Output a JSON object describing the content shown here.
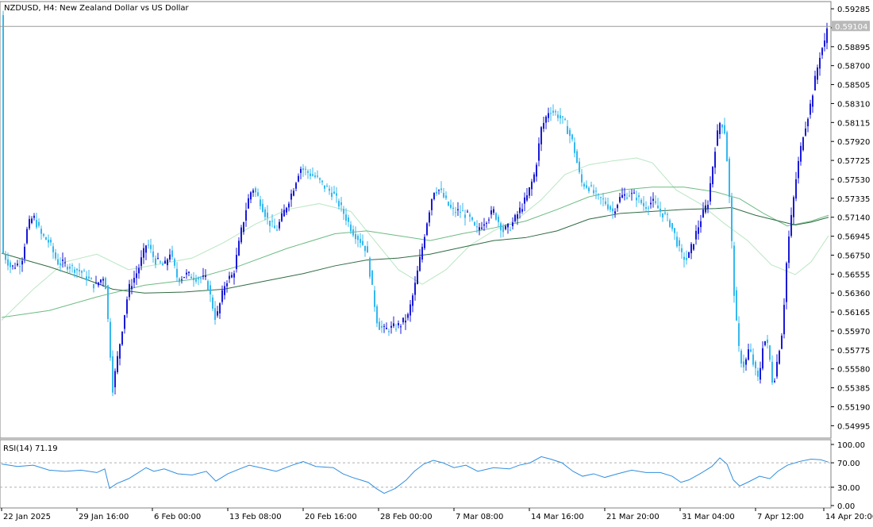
{
  "chart_data": {
    "type": "candlestick",
    "title": "NZDUSD, H4:  New Zealand Dollar vs US Dollar",
    "price_axis": {
      "ticks": [
        "0.59285",
        "0.59090",
        "0.58895",
        "0.58700",
        "0.58505",
        "0.58310",
        "0.58115",
        "0.57920",
        "0.57725",
        "0.57530",
        "0.57335",
        "0.57140",
        "0.56945",
        "0.56750",
        "0.56555",
        "0.56360",
        "0.56165",
        "0.55970",
        "0.55775",
        "0.55580",
        "0.55385",
        "0.55190",
        "0.54995"
      ],
      "range": [
        0.549,
        0.5931
      ],
      "current_price_label": "0.59104",
      "current_price": 0.59104
    },
    "time_axis": {
      "labels": [
        "22 Jan 2025",
        "29 Jan 16:00",
        "6 Feb 00:00",
        "13 Feb 08:00",
        "20 Feb 16:00",
        "28 Feb 00:00",
        "7 Mar 08:00",
        "14 Mar 16:00",
        "21 Mar 20:00",
        "31 Mar 04:00",
        "7 Apr 12:00",
        "14 Apr 20:00"
      ]
    },
    "price_path": [
      [
        0,
        0.568
      ],
      [
        12,
        0.5662
      ],
      [
        25,
        0.5668
      ],
      [
        33,
        0.5705
      ],
      [
        40,
        0.5715
      ],
      [
        50,
        0.5696
      ],
      [
        60,
        0.5688
      ],
      [
        70,
        0.5668
      ],
      [
        85,
        0.5664
      ],
      [
        100,
        0.5658
      ],
      [
        118,
        0.5643
      ],
      [
        130,
        0.5655
      ],
      [
        140,
        0.5538
      ],
      [
        150,
        0.559
      ],
      [
        160,
        0.564
      ],
      [
        172,
        0.566
      ],
      [
        183,
        0.5688
      ],
      [
        193,
        0.567
      ],
      [
        205,
        0.5663
      ],
      [
        212,
        0.5678
      ],
      [
        222,
        0.565
      ],
      [
        232,
        0.5655
      ],
      [
        245,
        0.5652
      ],
      [
        258,
        0.565
      ],
      [
        270,
        0.5608
      ],
      [
        282,
        0.5648
      ],
      [
        292,
        0.5655
      ],
      [
        302,
        0.57
      ],
      [
        310,
        0.573
      ],
      [
        316,
        0.5745
      ],
      [
        326,
        0.573
      ],
      [
        336,
        0.571
      ],
      [
        346,
        0.57
      ],
      [
        356,
        0.572
      ],
      [
        366,
        0.574
      ],
      [
        376,
        0.5765
      ],
      [
        386,
        0.576
      ],
      [
        396,
        0.5755
      ],
      [
        406,
        0.5746
      ],
      [
        418,
        0.5738
      ],
      [
        430,
        0.572
      ],
      [
        442,
        0.57
      ],
      [
        452,
        0.569
      ],
      [
        460,
        0.568
      ],
      [
        467,
        0.564
      ],
      [
        474,
        0.5603
      ],
      [
        482,
        0.5598
      ],
      [
        492,
        0.56
      ],
      [
        502,
        0.5603
      ],
      [
        512,
        0.5612
      ],
      [
        520,
        0.564
      ],
      [
        528,
        0.5675
      ],
      [
        536,
        0.571
      ],
      [
        544,
        0.5742
      ],
      [
        552,
        0.5742
      ],
      [
        560,
        0.573
      ],
      [
        568,
        0.572
      ],
      [
        578,
        0.572
      ],
      [
        588,
        0.5715
      ],
      [
        598,
        0.57
      ],
      [
        608,
        0.571
      ],
      [
        620,
        0.572
      ],
      [
        632,
        0.57
      ],
      [
        642,
        0.5705
      ],
      [
        652,
        0.572
      ],
      [
        662,
        0.5735
      ],
      [
        672,
        0.576
      ],
      [
        680,
        0.5805
      ],
      [
        690,
        0.5825
      ],
      [
        700,
        0.582
      ],
      [
        710,
        0.581
      ],
      [
        720,
        0.579
      ],
      [
        730,
        0.575
      ],
      [
        740,
        0.5745
      ],
      [
        750,
        0.5735
      ],
      [
        760,
        0.573
      ],
      [
        770,
        0.572
      ],
      [
        780,
        0.5735
      ],
      [
        790,
        0.5738
      ],
      [
        800,
        0.5735
      ],
      [
        810,
        0.5725
      ],
      [
        820,
        0.573
      ],
      [
        830,
        0.572
      ],
      [
        840,
        0.5712
      ],
      [
        848,
        0.5696
      ],
      [
        856,
        0.5675
      ],
      [
        864,
        0.567
      ],
      [
        872,
        0.569
      ],
      [
        880,
        0.571
      ],
      [
        890,
        0.573
      ],
      [
        900,
        0.5792
      ],
      [
        906,
        0.5815
      ],
      [
        912,
        0.58
      ],
      [
        918,
        0.572
      ],
      [
        924,
        0.562
      ],
      [
        930,
        0.557
      ],
      [
        936,
        0.556
      ],
      [
        942,
        0.558
      ],
      [
        948,
        0.556
      ],
      [
        954,
        0.5545
      ],
      [
        960,
        0.559
      ],
      [
        966,
        0.558
      ],
      [
        972,
        0.554
      ],
      [
        978,
        0.557
      ],
      [
        984,
        0.56
      ],
      [
        990,
        0.568
      ],
      [
        996,
        0.572
      ],
      [
        1002,
        0.576
      ],
      [
        1010,
        0.58
      ],
      [
        1018,
        0.5825
      ],
      [
        1026,
        0.586
      ],
      [
        1032,
        0.5885
      ],
      [
        1038,
        0.5895
      ],
      [
        1042,
        0.5922
      ]
    ],
    "moving_averages": [
      {
        "color": "#b9e6c2",
        "path": [
          [
            0,
            0.5608
          ],
          [
            40,
            0.564
          ],
          [
            80,
            0.5668
          ],
          [
            120,
            0.5676
          ],
          [
            160,
            0.566
          ],
          [
            200,
            0.5666
          ],
          [
            240,
            0.5672
          ],
          [
            280,
            0.5688
          ],
          [
            320,
            0.5707
          ],
          [
            360,
            0.5722
          ],
          [
            400,
            0.5728
          ],
          [
            440,
            0.572
          ],
          [
            470,
            0.569
          ],
          [
            500,
            0.566
          ],
          [
            530,
            0.5645
          ],
          [
            560,
            0.566
          ],
          [
            590,
            0.5685
          ],
          [
            620,
            0.57
          ],
          [
            650,
            0.5712
          ],
          [
            680,
            0.5732
          ],
          [
            710,
            0.5758
          ],
          [
            740,
            0.5768
          ],
          [
            770,
            0.5772
          ],
          [
            800,
            0.5775
          ],
          [
            820,
            0.577
          ],
          [
            850,
            0.5742
          ],
          [
            880,
            0.5728
          ],
          [
            910,
            0.5708
          ],
          [
            940,
            0.569
          ],
          [
            970,
            0.5665
          ],
          [
            1000,
            0.5655
          ],
          [
            1020,
            0.5668
          ],
          [
            1042,
            0.5695
          ]
        ]
      },
      {
        "color": "#6cbb83",
        "path": [
          [
            0,
            0.5611
          ],
          [
            60,
            0.5618
          ],
          [
            120,
            0.5632
          ],
          [
            180,
            0.5644
          ],
          [
            240,
            0.565
          ],
          [
            300,
            0.5664
          ],
          [
            360,
            0.5682
          ],
          [
            420,
            0.5697
          ],
          [
            460,
            0.57
          ],
          [
            500,
            0.5695
          ],
          [
            540,
            0.569
          ],
          [
            580,
            0.5697
          ],
          [
            620,
            0.5703
          ],
          [
            660,
            0.571
          ],
          [
            700,
            0.5722
          ],
          [
            740,
            0.5735
          ],
          [
            780,
            0.5742
          ],
          [
            820,
            0.5745
          ],
          [
            860,
            0.5745
          ],
          [
            900,
            0.574
          ],
          [
            930,
            0.5733
          ],
          [
            960,
            0.5718
          ],
          [
            990,
            0.5705
          ],
          [
            1020,
            0.571
          ],
          [
            1042,
            0.5716
          ]
        ]
      },
      {
        "color": "#2f6b43",
        "path": [
          [
            0,
            0.5677
          ],
          [
            30,
            0.567
          ],
          [
            60,
            0.5663
          ],
          [
            100,
            0.5652
          ],
          [
            140,
            0.564
          ],
          [
            180,
            0.5636
          ],
          [
            230,
            0.5637
          ],
          [
            280,
            0.564
          ],
          [
            330,
            0.5648
          ],
          [
            380,
            0.5656
          ],
          [
            420,
            0.5664
          ],
          [
            460,
            0.567
          ],
          [
            500,
            0.5672
          ],
          [
            540,
            0.5676
          ],
          [
            580,
            0.5683
          ],
          [
            620,
            0.569
          ],
          [
            660,
            0.5693
          ],
          [
            700,
            0.57
          ],
          [
            740,
            0.5712
          ],
          [
            780,
            0.5718
          ],
          [
            820,
            0.572
          ],
          [
            860,
            0.5722
          ],
          [
            900,
            0.5723
          ],
          [
            920,
            0.5724
          ],
          [
            950,
            0.5716
          ],
          [
            980,
            0.571
          ],
          [
            1000,
            0.5706
          ],
          [
            1020,
            0.5709
          ],
          [
            1042,
            0.5714
          ]
        ]
      }
    ],
    "rsi": {
      "label": "RSI(14) 71.19",
      "levels": [
        "100.00",
        "70.00",
        "30.00",
        "0.00"
      ],
      "path": [
        [
          0,
          68
        ],
        [
          20,
          64
        ],
        [
          40,
          66
        ],
        [
          60,
          58
        ],
        [
          80,
          56
        ],
        [
          100,
          58
        ],
        [
          120,
          54
        ],
        [
          130,
          60
        ],
        [
          136,
          28
        ],
        [
          145,
          36
        ],
        [
          160,
          44
        ],
        [
          170,
          52
        ],
        [
          182,
          62
        ],
        [
          192,
          56
        ],
        [
          205,
          60
        ],
        [
          222,
          52
        ],
        [
          240,
          50
        ],
        [
          258,
          56
        ],
        [
          270,
          40
        ],
        [
          285,
          52
        ],
        [
          300,
          60
        ],
        [
          312,
          66
        ],
        [
          326,
          62
        ],
        [
          346,
          56
        ],
        [
          366,
          66
        ],
        [
          380,
          72
        ],
        [
          396,
          64
        ],
        [
          418,
          62
        ],
        [
          430,
          52
        ],
        [
          442,
          46
        ],
        [
          452,
          42
        ],
        [
          462,
          38
        ],
        [
          472,
          28
        ],
        [
          482,
          20
        ],
        [
          496,
          28
        ],
        [
          510,
          42
        ],
        [
          520,
          56
        ],
        [
          532,
          68
        ],
        [
          544,
          74
        ],
        [
          556,
          70
        ],
        [
          570,
          62
        ],
        [
          585,
          66
        ],
        [
          600,
          56
        ],
        [
          620,
          62
        ],
        [
          640,
          60
        ],
        [
          652,
          66
        ],
        [
          666,
          70
        ],
        [
          680,
          80
        ],
        [
          692,
          76
        ],
        [
          706,
          70
        ],
        [
          720,
          56
        ],
        [
          732,
          48
        ],
        [
          746,
          52
        ],
        [
          760,
          46
        ],
        [
          776,
          52
        ],
        [
          794,
          58
        ],
        [
          812,
          54
        ],
        [
          830,
          54
        ],
        [
          845,
          48
        ],
        [
          856,
          38
        ],
        [
          866,
          42
        ],
        [
          880,
          52
        ],
        [
          895,
          64
        ],
        [
          905,
          78
        ],
        [
          914,
          68
        ],
        [
          922,
          42
        ],
        [
          930,
          32
        ],
        [
          940,
          38
        ],
        [
          955,
          48
        ],
        [
          968,
          44
        ],
        [
          978,
          56
        ],
        [
          990,
          66
        ],
        [
          1005,
          72
        ],
        [
          1020,
          76
        ],
        [
          1032,
          75
        ],
        [
          1042,
          71
        ]
      ]
    }
  }
}
